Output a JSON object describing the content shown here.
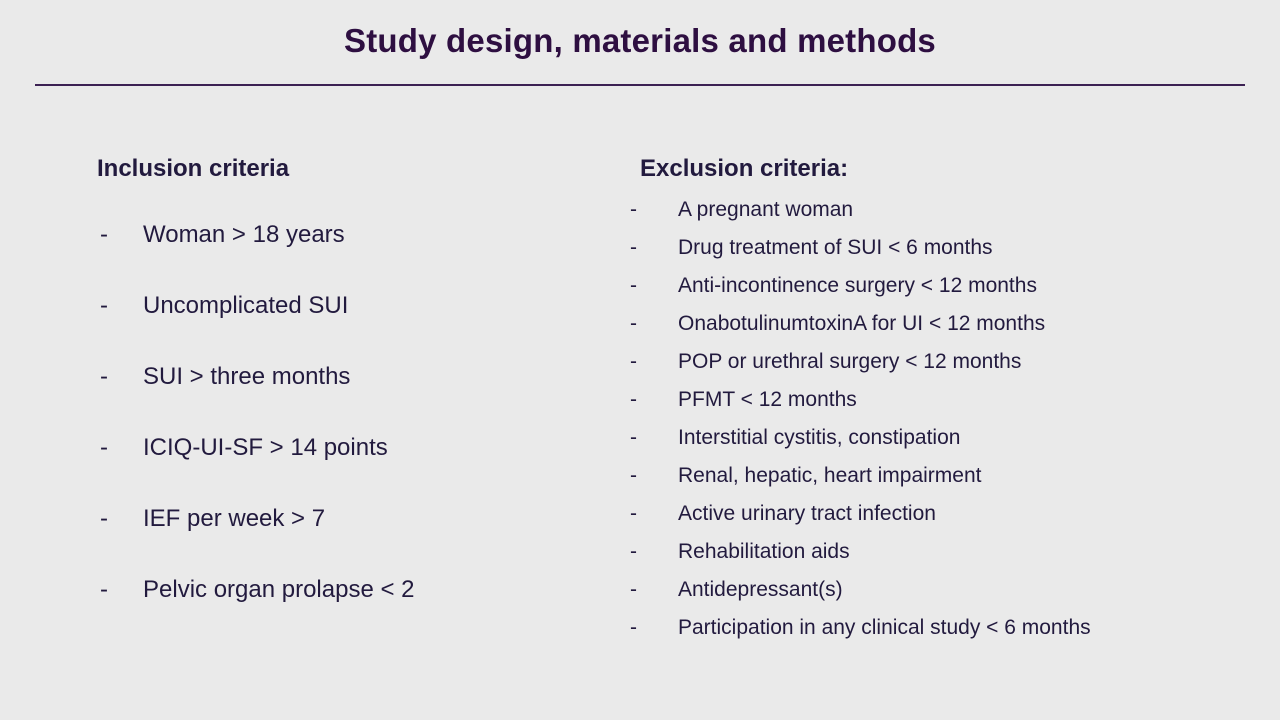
{
  "slide": {
    "title": "Study design, materials and methods",
    "bullet": "-"
  },
  "inclusion": {
    "heading": "Inclusion criteria",
    "items": [
      "Woman > 18 years",
      "Uncomplicated SUI",
      "SUI > three months",
      "ICIQ-UI-SF > 14 points",
      "IEF per week > 7",
      "Pelvic organ prolapse < 2"
    ]
  },
  "exclusion": {
    "heading": "Exclusion criteria:",
    "items": [
      "A pregnant woman",
      "Drug treatment of SUI < 6 months",
      "Anti-incontinence surgery < 12 months",
      "OnabotulinumtoxinA for UI < 12 months",
      "POP or urethral surgery < 12 months",
      "PFMT < 12 months",
      "Interstitial cystitis, constipation",
      "Renal, hepatic, heart impairment",
      "Active urinary tract infection",
      "Rehabilitation aids",
      "Antidepressant(s)",
      "Participation in any clinical study < 6 months"
    ]
  },
  "colors": {
    "background": "#eaeaea",
    "title_text": "#2e0f41",
    "body_text": "#221a3e",
    "divider": "#3c2153"
  }
}
